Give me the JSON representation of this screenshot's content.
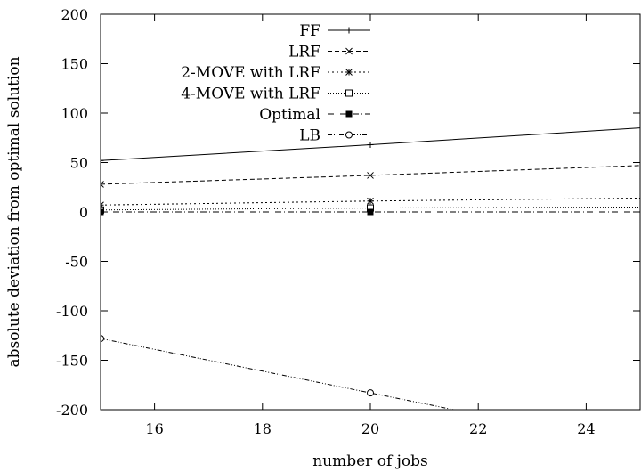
{
  "chart_data": {
    "type": "line",
    "xlabel": "number of jobs",
    "ylabel": "absolute deviation from optimal solution",
    "xlim": [
      15,
      25
    ],
    "ylim": [
      -200,
      200
    ],
    "x_ticks": [
      "16",
      "18",
      "20",
      "22",
      "24"
    ],
    "y_ticks": [
      "200",
      "150",
      "100",
      "50",
      "0",
      "-50",
      "-100",
      "-150",
      "-200"
    ],
    "grid": false,
    "legend_position": "top-left",
    "series": [
      {
        "name": "FF",
        "marker": "plus",
        "dash": "none",
        "x": [
          15,
          20,
          25
        ],
        "y": [
          52,
          68,
          85
        ]
      },
      {
        "name": "LRF",
        "marker": "cross",
        "dash": "dashed",
        "x": [
          15,
          20,
          25
        ],
        "y": [
          28,
          37,
          47
        ]
      },
      {
        "name": "2-MOVE with LRF",
        "marker": "star",
        "dash": "dotted-sparse",
        "x": [
          15,
          20,
          25
        ],
        "y": [
          7,
          11,
          14
        ]
      },
      {
        "name": "4-MOVE with LRF",
        "marker": "square-open",
        "dash": "dotted",
        "x": [
          15,
          20,
          25
        ],
        "y": [
          2,
          4,
          5
        ]
      },
      {
        "name": "Optimal",
        "marker": "square-filled",
        "dash": "dash-dot",
        "x": [
          15,
          20,
          25
        ],
        "y": [
          0,
          0,
          0
        ]
      },
      {
        "name": "LB",
        "marker": "circle-open",
        "dash": "dash-dot-dot",
        "x": [
          15,
          20,
          25
        ],
        "y": [
          -128,
          -183,
          -238
        ]
      }
    ]
  }
}
